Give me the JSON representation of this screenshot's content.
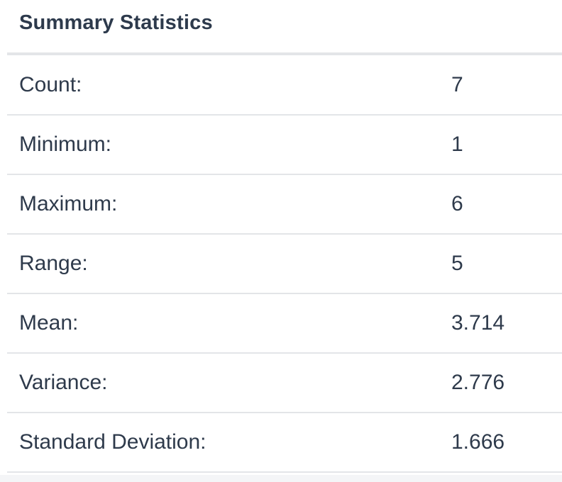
{
  "panel": {
    "title": "Summary Statistics"
  },
  "stats": [
    {
      "label": "Count:",
      "value": "7"
    },
    {
      "label": "Minimum:",
      "value": "1"
    },
    {
      "label": "Maximum:",
      "value": "6"
    },
    {
      "label": "Range:",
      "value": "5"
    },
    {
      "label": "Mean:",
      "value": "3.714"
    },
    {
      "label": "Variance:",
      "value": "2.776"
    },
    {
      "label": "Standard Deviation:",
      "value": "1.666"
    }
  ],
  "colors": {
    "text": "#2e3a4b",
    "title": "#2d3a4c",
    "divider": "#e3e5e8",
    "background": "#ffffff"
  }
}
